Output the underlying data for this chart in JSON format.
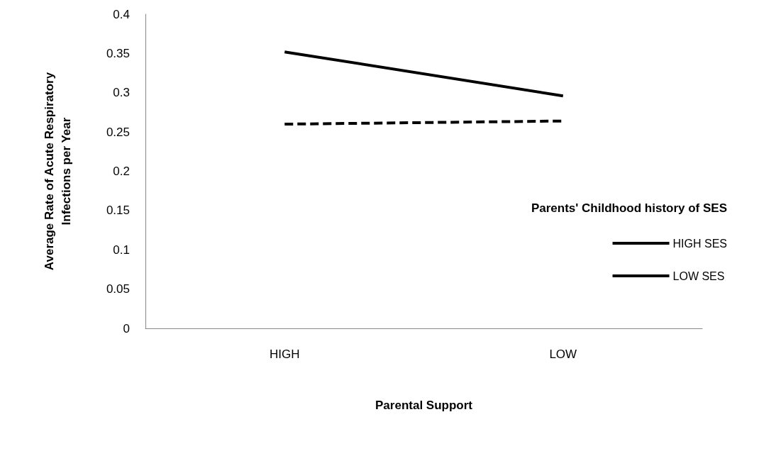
{
  "chart_data": {
    "type": "line",
    "xlabel": "Parental Support",
    "ylabel": "Average Rate of Acute Respiratory\nInfections per Year",
    "legend_title": "Parents' Childhood history of SES",
    "categories": [
      "HIGH",
      "LOW"
    ],
    "series": [
      {
        "name": "HIGH SES",
        "color": "#000000",
        "line_style": "dashed",
        "values": [
          0.26,
          0.264
        ]
      },
      {
        "name": "LOW SES",
        "color": "#000000",
        "line_style": "solid",
        "values": [
          0.352,
          0.296
        ]
      }
    ],
    "ylim": [
      0,
      0.4
    ],
    "yticks": [
      0,
      0.05,
      0.1,
      0.15,
      0.2,
      0.25,
      0.3,
      0.35,
      0.4
    ],
    "grid": false,
    "legend": "right",
    "marker": "none"
  }
}
